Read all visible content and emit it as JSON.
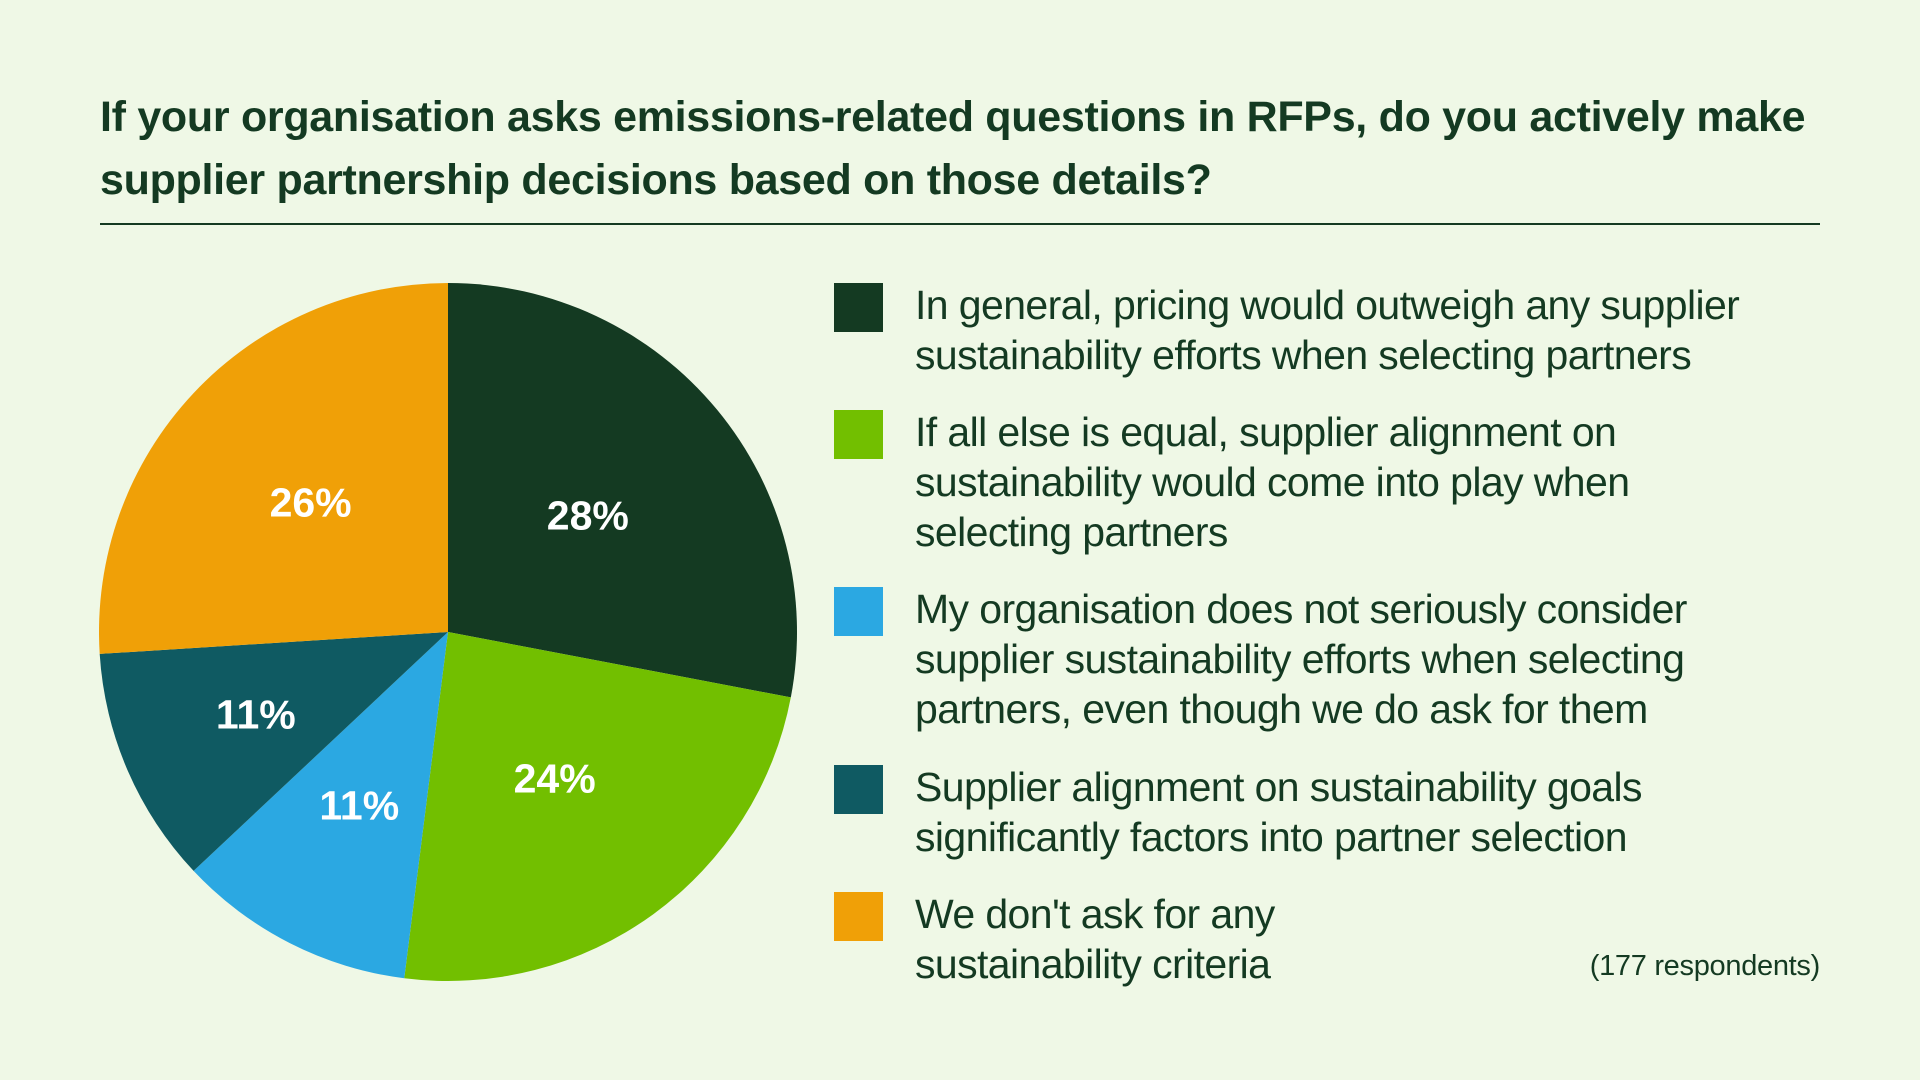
{
  "title": "If your organisation asks emissions-related questions in RFPs, do you actively make supplier partnership decisions based on those details?",
  "respondents": "(177 respondents)",
  "colors": {
    "background": "#eff8e6",
    "text": "#143a22",
    "label_text": "#ffffff"
  },
  "legend": [
    {
      "label": "In general, pricing would outweigh any supplier sustainability efforts when selecting partners",
      "color": "#143a22"
    },
    {
      "label": "If all else is equal, supplier alignment on sustainability would come into play when selecting partners",
      "color": "#72bf00"
    },
    {
      "label": "My organisation does not seriously consider supplier sustainability efforts when selecting partners, even though we do ask for them",
      "color": "#2ba8e2"
    },
    {
      "label": "Supplier alignment on sustainability goals significantly factors into partner selection",
      "color": "#0f5a62"
    },
    {
      "label": "We don't ask for any sustainability criteria",
      "color": "#f0a007"
    }
  ],
  "chart_data": {
    "type": "pie",
    "title": "If your organisation asks emissions-related questions in RFPs, do you actively make supplier partnership decisions based on those details?",
    "categories": [
      "In general, pricing would outweigh any supplier sustainability efforts when selecting partners",
      "If all else is equal, supplier alignment on sustainability would come into play when selecting partners",
      "My organisation does not seriously consider supplier sustainability efforts when selecting partners, even though we do ask for them",
      "Supplier alignment on sustainability goals significantly factors into partner selection",
      "We don't ask for any sustainability criteria"
    ],
    "values": [
      28,
      24,
      11,
      11,
      26
    ],
    "labels": [
      "28%",
      "24%",
      "11%",
      "11%",
      "26%"
    ],
    "colors": [
      "#143a22",
      "#72bf00",
      "#2ba8e2",
      "#0f5a62",
      "#f0a007"
    ],
    "start_angle": "12 o'clock",
    "direction": "clockwise",
    "legend_position": "right",
    "note": "(177 respondents)"
  }
}
